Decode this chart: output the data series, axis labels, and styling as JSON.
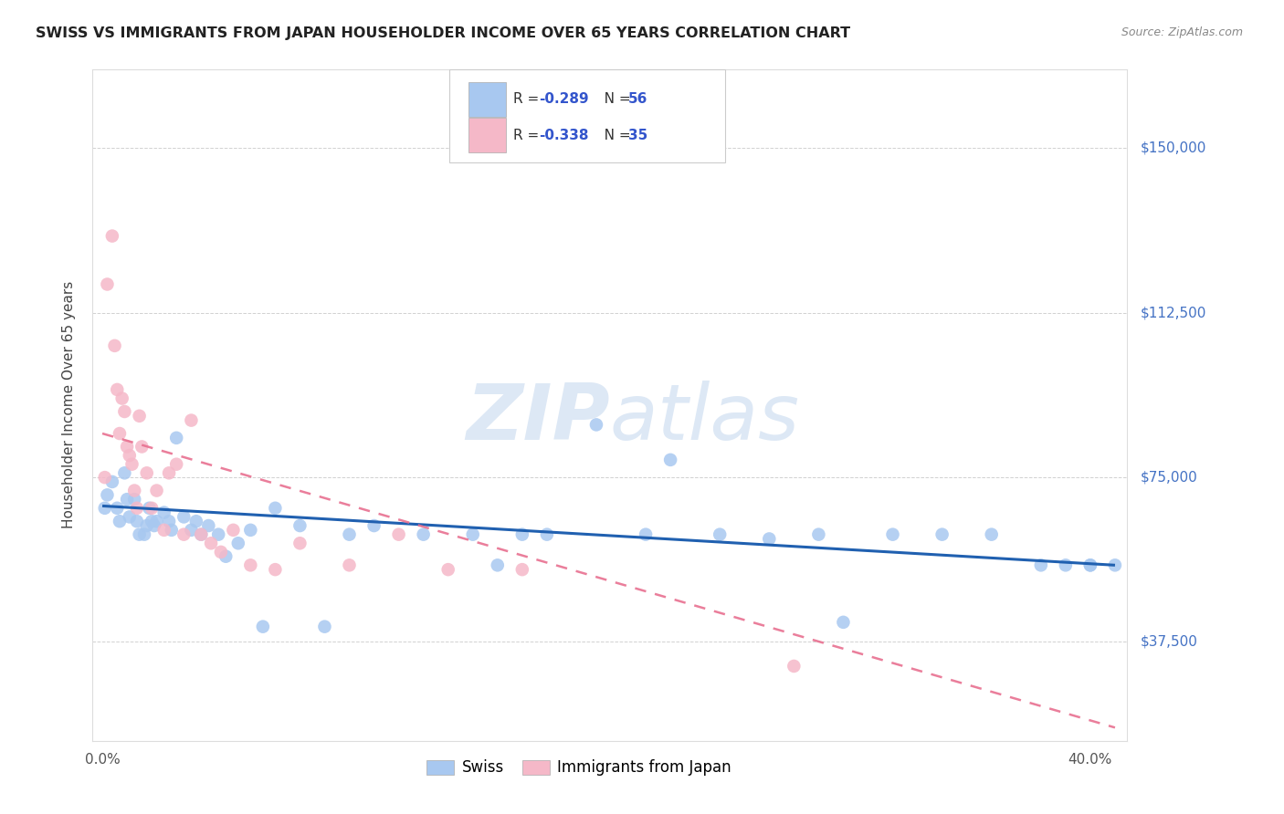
{
  "title": "SWISS VS IMMIGRANTS FROM JAPAN HOUSEHOLDER INCOME OVER 65 YEARS CORRELATION CHART",
  "source": "Source: ZipAtlas.com",
  "ylabel": "Householder Income Over 65 years",
  "ytick_labels": [
    "$37,500",
    "$75,000",
    "$112,500",
    "$150,000"
  ],
  "ytick_values": [
    37500,
    75000,
    112500,
    150000
  ],
  "ylim": [
    15000,
    168000
  ],
  "xlim": [
    -0.004,
    0.415
  ],
  "legend_swiss_r": "-0.289",
  "legend_swiss_n": "56",
  "legend_japan_r": "-0.338",
  "legend_japan_n": "35",
  "legend_label_swiss": "Swiss",
  "legend_label_japan": "Immigrants from Japan",
  "swiss_dot_color": "#a8c8f0",
  "japan_dot_color": "#f5b8c8",
  "swiss_line_color": "#2060b0",
  "japan_line_color": "#e87090",
  "swiss_scatter_x": [
    0.001,
    0.002,
    0.004,
    0.006,
    0.007,
    0.009,
    0.01,
    0.011,
    0.013,
    0.014,
    0.015,
    0.017,
    0.018,
    0.019,
    0.02,
    0.021,
    0.022,
    0.025,
    0.027,
    0.028,
    0.03,
    0.033,
    0.036,
    0.038,
    0.04,
    0.043,
    0.047,
    0.05,
    0.055,
    0.06,
    0.065,
    0.07,
    0.08,
    0.09,
    0.1,
    0.11,
    0.13,
    0.15,
    0.16,
    0.17,
    0.18,
    0.2,
    0.22,
    0.23,
    0.25,
    0.27,
    0.29,
    0.3,
    0.32,
    0.34,
    0.36,
    0.38,
    0.39,
    0.4,
    0.4,
    0.41
  ],
  "swiss_scatter_y": [
    68000,
    71000,
    74000,
    68000,
    65000,
    76000,
    70000,
    66000,
    70000,
    65000,
    62000,
    62000,
    64000,
    68000,
    65000,
    64000,
    65000,
    67000,
    65000,
    63000,
    84000,
    66000,
    63000,
    65000,
    62000,
    64000,
    62000,
    57000,
    60000,
    63000,
    41000,
    68000,
    64000,
    41000,
    62000,
    64000,
    62000,
    62000,
    55000,
    62000,
    62000,
    87000,
    62000,
    79000,
    62000,
    61000,
    62000,
    42000,
    62000,
    62000,
    62000,
    55000,
    55000,
    55000,
    55000,
    55000
  ],
  "japan_scatter_x": [
    0.001,
    0.002,
    0.004,
    0.005,
    0.006,
    0.007,
    0.008,
    0.009,
    0.01,
    0.011,
    0.012,
    0.013,
    0.014,
    0.015,
    0.016,
    0.018,
    0.02,
    0.022,
    0.025,
    0.027,
    0.03,
    0.033,
    0.036,
    0.04,
    0.044,
    0.048,
    0.053,
    0.06,
    0.07,
    0.08,
    0.1,
    0.12,
    0.14,
    0.17,
    0.28
  ],
  "japan_scatter_y": [
    75000,
    119000,
    130000,
    105000,
    95000,
    85000,
    93000,
    90000,
    82000,
    80000,
    78000,
    72000,
    68000,
    89000,
    82000,
    76000,
    68000,
    72000,
    63000,
    76000,
    78000,
    62000,
    88000,
    62000,
    60000,
    58000,
    63000,
    55000,
    54000,
    60000,
    55000,
    62000,
    54000,
    54000,
    32000
  ],
  "swiss_trend_x": [
    0.0,
    0.41
  ],
  "swiss_trend_y": [
    68500,
    55000
  ],
  "japan_trend_x": [
    0.0,
    0.41
  ],
  "japan_trend_y": [
    85000,
    18000
  ],
  "bg_color": "#ffffff",
  "grid_color": "#cccccc",
  "title_color": "#222222",
  "ytick_color": "#4472c4",
  "watermark_color": "#dde8f5"
}
